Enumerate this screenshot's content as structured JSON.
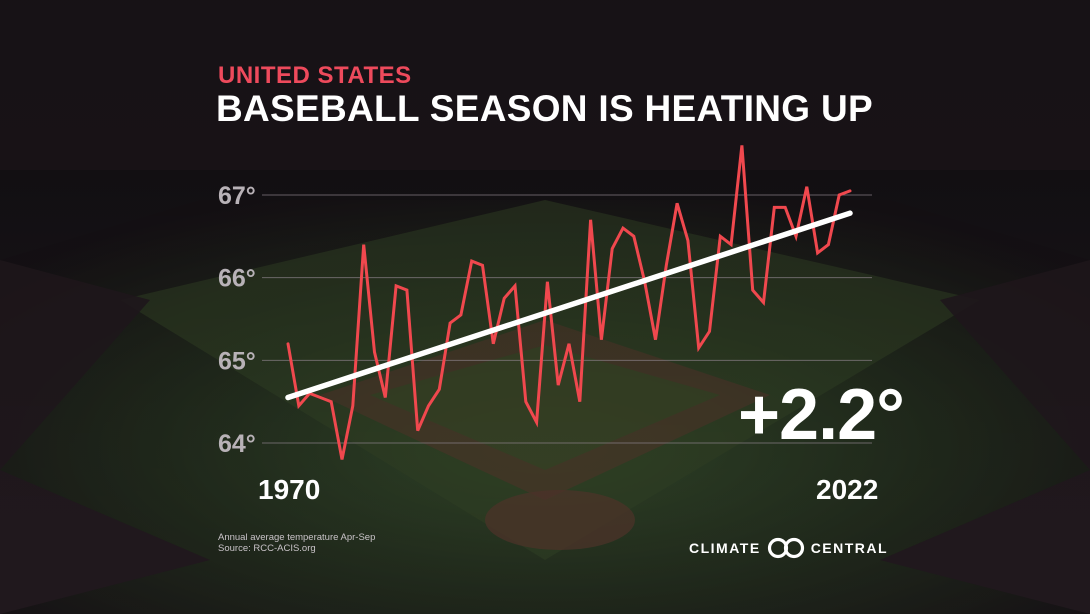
{
  "header": {
    "eyebrow": "UNITED STATES",
    "title": "BASEBALL SEASON IS HEATING UP"
  },
  "callout": {
    "change": "+2.2°"
  },
  "axis": {
    "x_start_label": "1970",
    "x_end_label": "2022"
  },
  "footnote": {
    "line1": "Annual average temperature Apr-Sep",
    "line2": "Source: RCC-ACIS.org"
  },
  "brand": {
    "left": "CLIMATE",
    "right": "CENTRAL",
    "logo_icon": "linked-rings-icon"
  },
  "colors": {
    "series": "#f0484e",
    "trend": "#ffffff",
    "accent": "#ee4a5c",
    "gridline": "#8a8088",
    "tick": "#b8b2b7"
  },
  "chart_data": {
    "type": "line",
    "title": "BASEBALL SEASON IS HEATING UP",
    "subtitle": "UNITED STATES",
    "xlabel": "",
    "ylabel": "",
    "xlim": [
      1970,
      2022
    ],
    "ylim": [
      63.8,
      67.2
    ],
    "yticks": [
      64,
      65,
      66,
      67
    ],
    "ytick_labels": [
      "64°",
      "65°",
      "66°",
      "67°"
    ],
    "grid": true,
    "series": [
      {
        "x": [
          1970,
          1971,
          1972,
          1973,
          1974,
          1975,
          1976,
          1977,
          1978,
          1979,
          1980,
          1981,
          1982,
          1983,
          1984,
          1985,
          1986,
          1987,
          1988,
          1989,
          1990,
          1991,
          1992,
          1993,
          1994,
          1995,
          1996,
          1997,
          1998,
          1999,
          2000,
          2001,
          2002,
          2003,
          2004,
          2005,
          2006,
          2007,
          2008,
          2009,
          2010,
          2011,
          2012,
          2013,
          2014,
          2015,
          2016,
          2017,
          2018,
          2019,
          2020,
          2021,
          2022
        ],
        "values": [
          65.2,
          64.45,
          64.6,
          64.55,
          64.5,
          63.8,
          64.45,
          66.4,
          65.1,
          64.55,
          65.9,
          65.85,
          64.15,
          64.45,
          64.65,
          65.45,
          65.55,
          66.2,
          66.15,
          65.2,
          65.75,
          65.9,
          64.5,
          64.25,
          65.95,
          64.7,
          65.2,
          64.5,
          66.7,
          65.25,
          66.35,
          66.6,
          66.5,
          65.95,
          65.25,
          66.15,
          66.9,
          66.45,
          65.15,
          65.35,
          66.5,
          66.4,
          67.6,
          65.85,
          65.7,
          66.85,
          66.85,
          66.5,
          67.1,
          66.3,
          66.4,
          67.0,
          67.05
        ]
      }
    ],
    "trend": {
      "x": [
        1970,
        2022
      ],
      "values": [
        64.55,
        66.78
      ]
    },
    "annotation": "+2.2°"
  }
}
